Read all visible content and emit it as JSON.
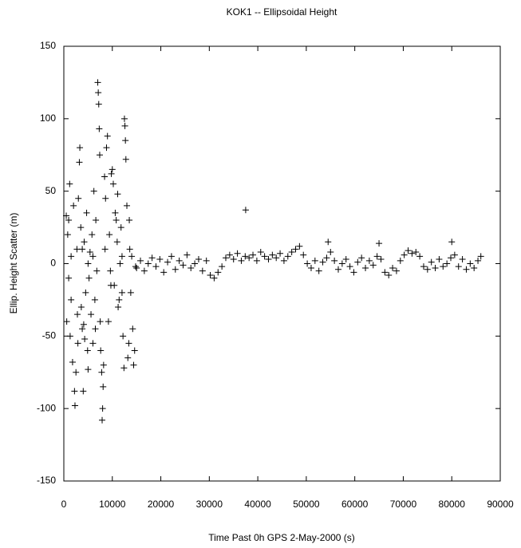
{
  "chart_data": {
    "type": "scatter",
    "title": "KOK1 -- Ellipsoidal Height",
    "xlabel": "Time Past 0h GPS 2-May-2000  (s)",
    "ylabel": "Ellip. Height Scatter  (m)",
    "xlim": [
      0,
      90000
    ],
    "ylim": [
      -150,
      150
    ],
    "xticks": [
      0,
      10000,
      20000,
      30000,
      40000,
      50000,
      60000,
      70000,
      80000,
      90000
    ],
    "yticks": [
      -150,
      -100,
      -50,
      0,
      50,
      100,
      150
    ],
    "color": "#000000",
    "x": [
      500,
      600,
      800,
      1000,
      1200,
      1300,
      1500,
      1800,
      2000,
      2200,
      2300,
      2500,
      2700,
      2900,
      3000,
      3200,
      3300,
      3500,
      3600,
      3800,
      4000,
      4200,
      4300,
      4500,
      4700,
      4900,
      5000,
      5200,
      5400,
      5600,
      5800,
      6000,
      6200,
      6400,
      6600,
      6800,
      7000,
      7100,
      7200,
      7300,
      7400,
      7500,
      7600,
      7800,
      7900,
      8000,
      8100,
      8200,
      8400,
      8600,
      8800,
      9000,
      9200,
      9400,
      9600,
      9800,
      10000,
      10200,
      10400,
      10600,
      10800,
      11000,
      11200,
      11400,
      11600,
      11800,
      12000,
      12200,
      12400,
      12500,
      12600,
      12700,
      12800,
      13000,
      13200,
      13400,
      13600,
      13800,
      14000,
      14200,
      14400,
      14600,
      14800,
      1000,
      1500,
      2800,
      4100,
      5000,
      6500,
      8500,
      9700,
      11100,
      13500,
      12000,
      6000,
      3800,
      15000,
      15800,
      16600,
      17400,
      18200,
      19000,
      19800,
      20600,
      21400,
      22200,
      23000,
      23800,
      24600,
      25400,
      26200,
      27000,
      27800,
      28600,
      29400,
      30200,
      31000,
      31800,
      32600,
      33400,
      34200,
      35000,
      35800,
      36600,
      37400,
      37500,
      38200,
      39000,
      39800,
      40600,
      41400,
      42200,
      43000,
      43800,
      44600,
      45400,
      46200,
      47000,
      47800,
      48600,
      49400,
      50200,
      51000,
      51800,
      52600,
      53400,
      54200,
      54500,
      55000,
      55800,
      56600,
      57400,
      58200,
      59000,
      59800,
      60600,
      61400,
      62200,
      63000,
      63800,
      64600,
      65000,
      65400,
      66200,
      67000,
      67800,
      68600,
      69400,
      70200,
      71000,
      71800,
      72600,
      73400,
      74200,
      75000,
      75800,
      76600,
      77400,
      78200,
      79000,
      79800,
      80000,
      80600,
      81400,
      82200,
      83000,
      83800,
      84600,
      85400,
      86000
    ],
    "values": [
      33,
      -40,
      20,
      -10,
      55,
      -50,
      5,
      -68,
      40,
      -88,
      -98,
      -75,
      10,
      -55,
      45,
      70,
      80,
      25,
      -30,
      -45,
      -88,
      15,
      -52,
      -20,
      35,
      -60,
      0,
      -10,
      8,
      -35,
      20,
      -55,
      50,
      -25,
      30,
      -5,
      125,
      118,
      110,
      93,
      75,
      -40,
      -60,
      -75,
      -108,
      -100,
      -85,
      -70,
      60,
      45,
      80,
      88,
      -40,
      20,
      -5,
      62,
      65,
      55,
      -15,
      35,
      30,
      15,
      -30,
      -25,
      0,
      25,
      -20,
      -50,
      -72,
      100,
      95,
      85,
      72,
      40,
      -65,
      -55,
      10,
      -20,
      5,
      -45,
      -70,
      -60,
      -2,
      30,
      -25,
      -35,
      -42,
      -73,
      -45,
      10,
      -15,
      48,
      30,
      5,
      5,
      10,
      -3,
      2,
      -5,
      0,
      4,
      -2,
      3,
      -6,
      1,
      5,
      -4,
      2,
      -1,
      6,
      -3,
      0,
      3,
      -5,
      2,
      -8,
      -10,
      -6,
      -2,
      4,
      6,
      3,
      7,
      2,
      5,
      37,
      4,
      6,
      2,
      8,
      5,
      3,
      6,
      4,
      7,
      2,
      5,
      8,
      10,
      12,
      6,
      0,
      -3,
      2,
      -5,
      1,
      4,
      15,
      8,
      2,
      -4,
      0,
      3,
      -2,
      -6,
      1,
      4,
      -3,
      2,
      -1,
      5,
      14,
      3,
      -6,
      -8,
      -3,
      -5,
      2,
      6,
      9,
      7,
      8,
      5,
      -2,
      -4,
      1,
      -3,
      3,
      -2,
      0,
      4,
      15,
      6,
      -2,
      3,
      -4,
      0,
      -3,
      2,
      5
    ]
  }
}
